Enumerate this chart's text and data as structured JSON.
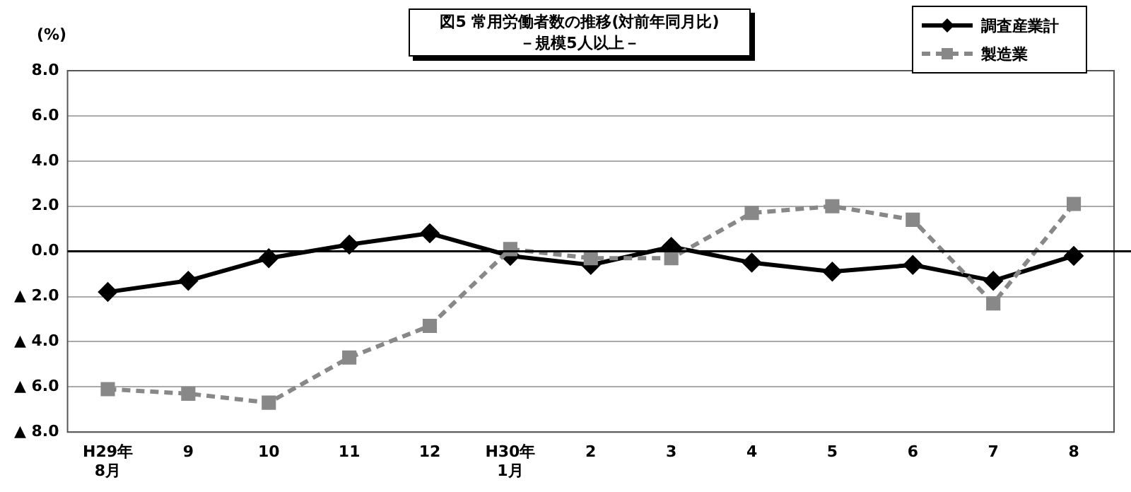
{
  "chart_data": {
    "type": "line",
    "title": "図5  常用労働者数の推移(対前年同月比)",
    "subtitle": "－規模5人以上－",
    "ylabel": "(%)",
    "categories": [
      "H29年\n8月",
      "9",
      "10",
      "11",
      "12",
      "H30年\n1月",
      "2",
      "3",
      "4",
      "5",
      "6",
      "7",
      "8"
    ],
    "series": [
      {
        "name": "調査産業計",
        "color": "#000000",
        "marker": "diamond",
        "line_style": "solid",
        "values": [
          -1.8,
          -1.3,
          -0.3,
          0.3,
          0.8,
          -0.2,
          -0.6,
          0.2,
          -0.5,
          -0.9,
          -0.6,
          -1.3,
          -0.2
        ]
      },
      {
        "name": "製造業",
        "color": "#888888",
        "marker": "square",
        "line_style": "dashed",
        "values": [
          -6.1,
          -6.3,
          -6.7,
          -4.7,
          -3.3,
          0.1,
          -0.3,
          -0.3,
          1.7,
          2.0,
          1.4,
          -2.3,
          2.1
        ]
      }
    ],
    "ylim": [
      -8,
      8
    ],
    "yticks": [
      {
        "value": -8,
        "label": "▲ 8.0"
      },
      {
        "value": -6,
        "label": "▲ 6.0"
      },
      {
        "value": -4,
        "label": "▲ 4.0"
      },
      {
        "value": -2,
        "label": "▲ 2.0"
      },
      {
        "value": 0,
        "label": "0.0"
      },
      {
        "value": 2,
        "label": "2.0"
      },
      {
        "value": 4,
        "label": "4.0"
      },
      {
        "value": 6,
        "label": "6.0"
      },
      {
        "value": 8,
        "label": "8.0"
      }
    ],
    "ref_lines": [
      {
        "axis": "y",
        "value": 0,
        "color": "#000000"
      }
    ],
    "grid": "y",
    "legend": "top right"
  }
}
